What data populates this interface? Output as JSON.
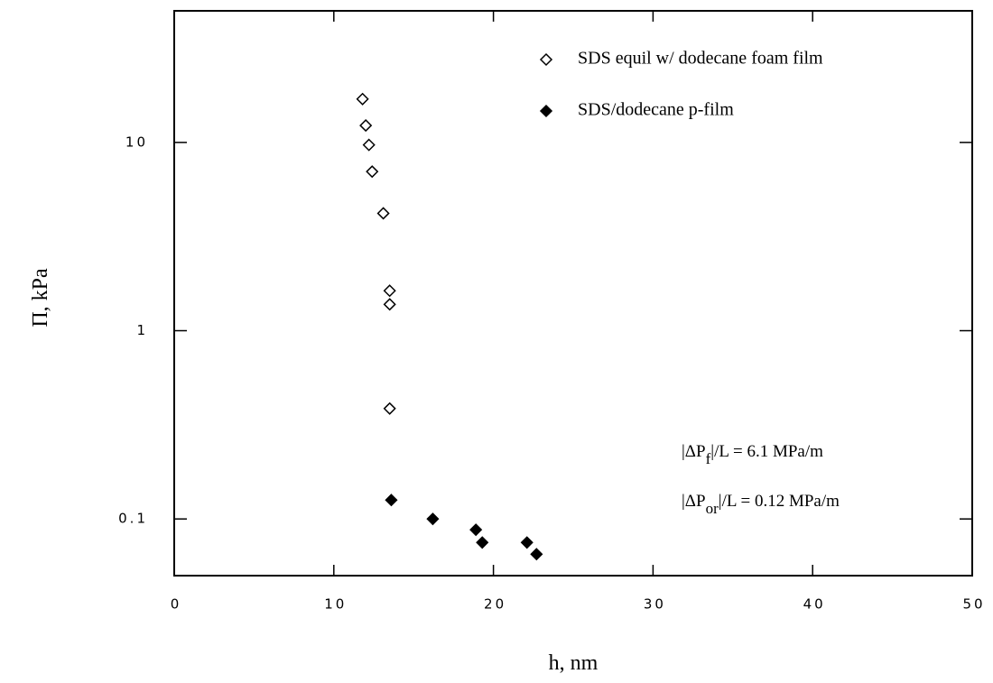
{
  "chart_data": {
    "type": "scatter",
    "x_label": "h, nm",
    "y_label": "Π, kPa",
    "xlim": [
      0,
      50
    ],
    "xticks": [
      0,
      10,
      20,
      30,
      40,
      50
    ],
    "ylim": [
      0.05,
      50
    ],
    "yscale": "log",
    "yticks": [
      0.1,
      1,
      10
    ],
    "legend": "upper right",
    "series": [
      {
        "name": "SDS equil w/ dodecane foam film",
        "color": "#000",
        "marker_fill": "none",
        "x": [
          11.8,
          12.0,
          12.2,
          12.4,
          13.1,
          13.5,
          13.5,
          13.5
        ],
        "values": [
          17,
          12.3,
          9.7,
          7.0,
          4.2,
          1.63,
          1.38,
          0.386
        ]
      },
      {
        "name": "SDS/dodecane p-film",
        "color": "#000",
        "marker_fill": "#000",
        "x": [
          13.6,
          16.2,
          18.9,
          19.3,
          22.1,
          22.7
        ],
        "values": [
          0.126,
          0.1,
          0.0876,
          0.075,
          0.075,
          0.065
        ]
      }
    ],
    "annotations": [
      {
        "prefix": "|ΔP",
        "sub": "f",
        "suffix": "|/L = 6.1 MPa/m"
      },
      {
        "prefix": "|ΔP",
        "sub": "or",
        "suffix": "|/L = 0.12 MPa/m"
      }
    ]
  }
}
